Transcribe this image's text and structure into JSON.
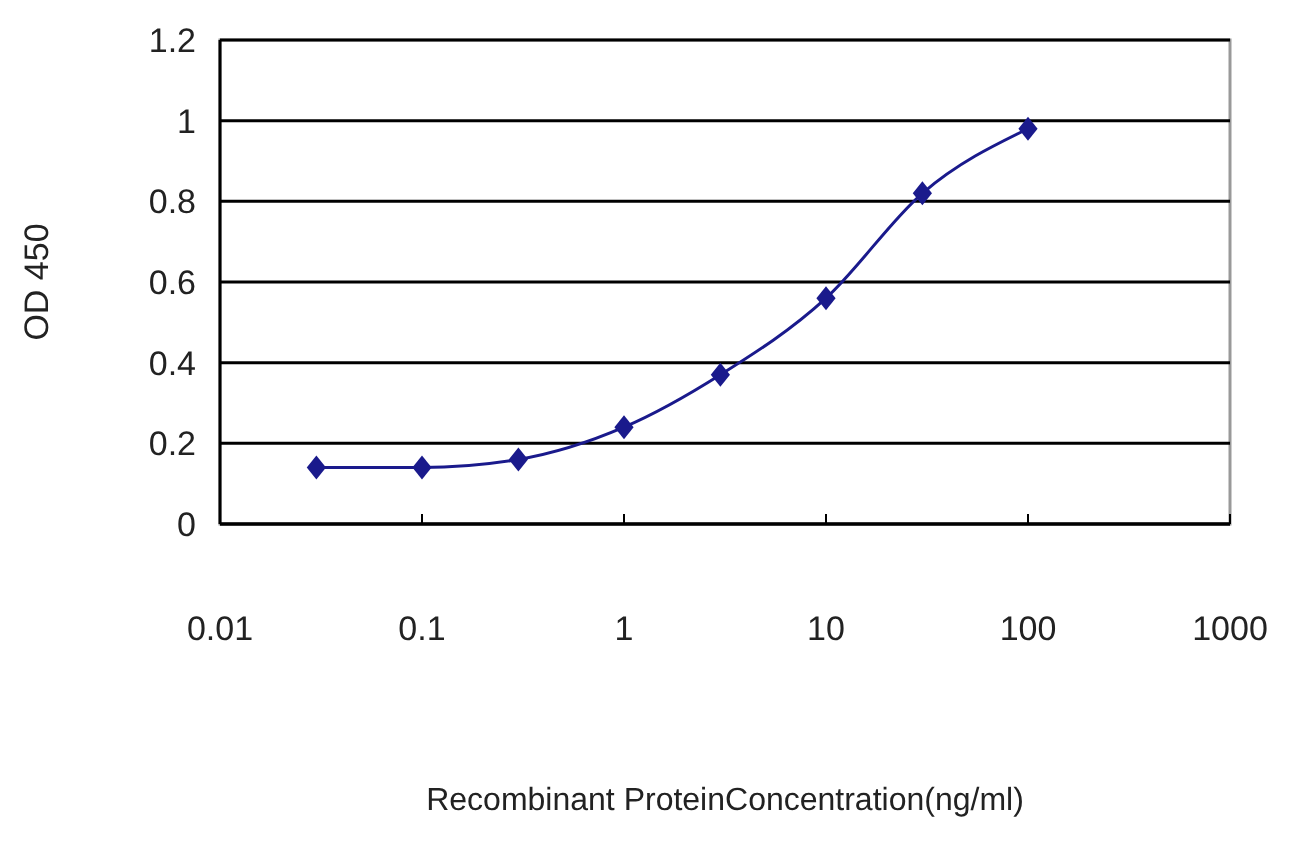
{
  "chart_data": {
    "type": "line",
    "xlabel": "Recombinant ProteinConcentration(ng/ml)",
    "ylabel": "OD 450",
    "x": [
      0.03,
      0.1,
      0.3,
      1,
      3,
      10,
      30,
      100
    ],
    "series": [
      {
        "color": "#1a1a8c",
        "values": [
          0.14,
          0.14,
          0.16,
          0.24,
          0.37,
          0.56,
          0.82,
          0.98
        ]
      }
    ],
    "log": "x",
    "xlim": [
      0.01,
      1000
    ],
    "xticks": [
      0.01,
      0.1,
      1,
      10,
      100,
      1000
    ],
    "ylim": [
      0,
      1.2
    ],
    "yticks": [
      0,
      0.2,
      0.4,
      0.6,
      0.8,
      1,
      1.2
    ],
    "grid": "y",
    "marker": "diamond",
    "line_style": "solid"
  }
}
